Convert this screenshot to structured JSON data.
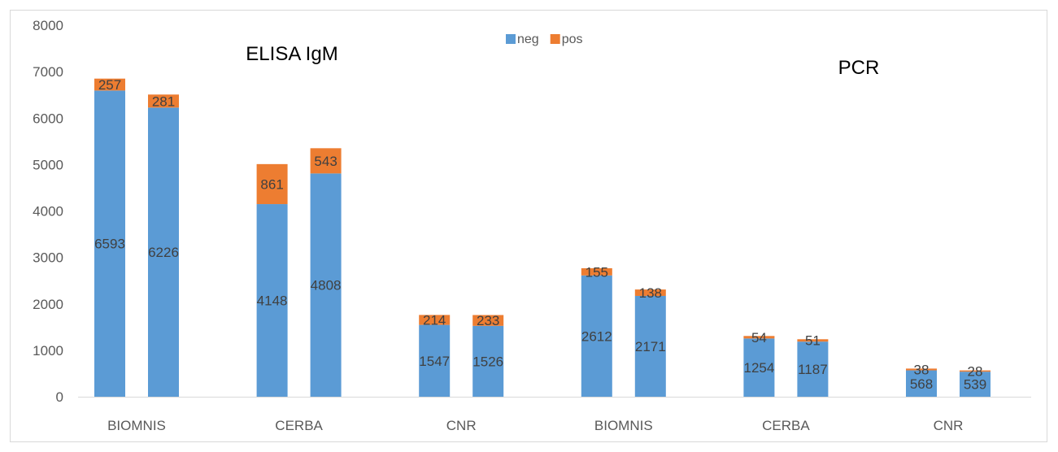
{
  "chart_data": {
    "type": "bar",
    "stacked": true,
    "ylim": [
      0,
      8000
    ],
    "yticks": [
      0,
      1000,
      2000,
      3000,
      4000,
      5000,
      6000,
      7000,
      8000
    ],
    "grid": false,
    "legend_position": "top-center",
    "groups": [
      {
        "title": "ELISA IgM",
        "categories": [
          "BIOMNIS",
          "CERBA",
          "CNR"
        ]
      },
      {
        "title": "PCR",
        "categories": [
          "BIOMNIS",
          "CERBA",
          "CNR"
        ]
      }
    ],
    "categories": [
      "BIOMNIS",
      "CERBA",
      "CNR",
      "BIOMNIS",
      "CERBA",
      "CNR"
    ],
    "series": [
      {
        "name": "neg",
        "color": "#5b9bd5",
        "values": [
          [
            6593,
            6226
          ],
          [
            4148,
            4808
          ],
          [
            1547,
            1526
          ],
          [
            2612,
            2171
          ],
          [
            1254,
            1187
          ],
          [
            568,
            539
          ]
        ]
      },
      {
        "name": "pos",
        "color": "#ed7d31",
        "values": [
          [
            257,
            281
          ],
          [
            861,
            543
          ],
          [
            214,
            233
          ],
          [
            155,
            138
          ],
          [
            54,
            51
          ],
          [
            38,
            28
          ]
        ]
      }
    ]
  }
}
